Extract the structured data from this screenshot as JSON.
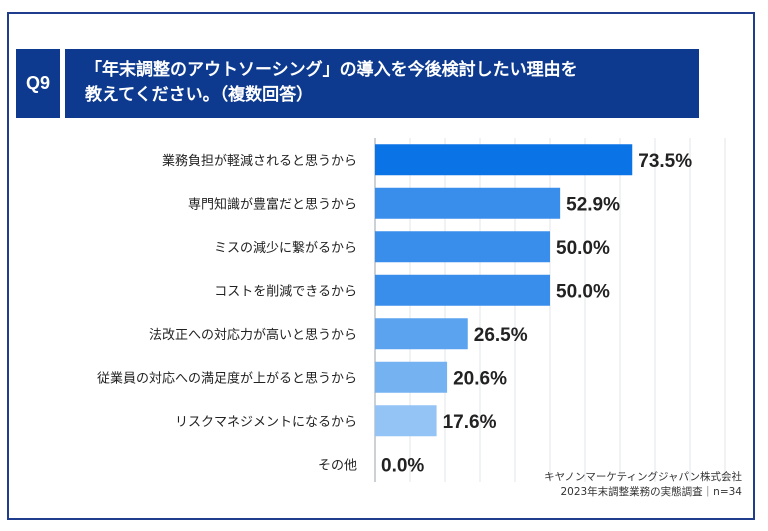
{
  "header": {
    "badge": "Q9",
    "question_line1": "「年末調整のアウトソーシング」の導入を今後検討したい理由を",
    "question_line2": "教えてください。（複数回答）"
  },
  "source": {
    "company": "キヤノンマーケティングジャパン株式会社",
    "survey": "2023年末調整業務の実態調査｜n=34"
  },
  "chart_data": {
    "type": "bar",
    "orientation": "horizontal",
    "categories": [
      "業務負担が軽減されると思うから",
      "専門知識が豊富だと思うから",
      "ミスの減少に繋がるから",
      "コストを削減できるから",
      "法改正への対応力が高いと思うから",
      "従業員の対応への満足度が上がると思うから",
      "リスクマネジメントになるから",
      "その他"
    ],
    "values": [
      73.5,
      52.9,
      50.0,
      50.0,
      26.5,
      20.6,
      17.6,
      0.0
    ],
    "value_labels": [
      "73.5%",
      "52.9%",
      "50.0%",
      "50.0%",
      "26.5%",
      "20.6%",
      "17.6%",
      "0.0%"
    ],
    "xlim": [
      0,
      100
    ],
    "grid": true,
    "title": "",
    "xlabel": "",
    "ylabel": "",
    "colors": [
      "#0a74e6",
      "#3a8eeb",
      "#3a8eeb",
      "#3a8eeb",
      "#5ca3ef",
      "#75b2f2",
      "#94c4f5",
      "#94c4f5"
    ]
  }
}
